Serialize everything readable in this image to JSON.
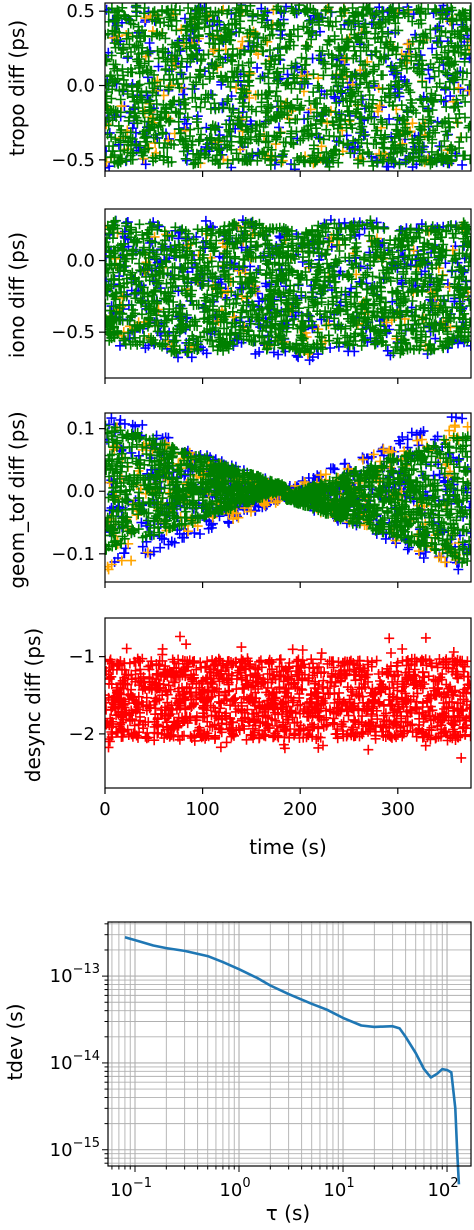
{
  "chart_data": [
    {
      "type": "scatter",
      "marker": "+",
      "xlim": [
        0,
        375
      ],
      "ylim": [
        -0.575,
        0.555
      ],
      "ylabel": "tropo diff (ps)",
      "xticks": [
        0,
        100,
        200,
        300
      ],
      "yticks": [
        -0.5,
        0.0,
        0.5
      ],
      "ytick_labels": [
        "−0.5",
        "0.0",
        "0.5"
      ],
      "series": [
        {
          "color": "#0000ff",
          "band": "uniform",
          "amp": 0.53,
          "count": 360
        },
        {
          "color": "#ffa500",
          "band": "uniform",
          "amp": 0.5,
          "count": 160
        },
        {
          "color": "#008000",
          "band": "uniform",
          "amp": 0.51,
          "count": 1600
        }
      ]
    },
    {
      "type": "scatter",
      "marker": "+",
      "xlim": [
        0,
        375
      ],
      "ylim": [
        -0.82,
        0.36
      ],
      "ylabel": "iono diff (ps)",
      "xticks": [
        0,
        100,
        200,
        300
      ],
      "yticks": [
        -0.5,
        0.0
      ],
      "ytick_labels": [
        "−0.5",
        "0.0"
      ],
      "series": [
        {
          "color": "#0000ff",
          "band": "iono",
          "amp": 0.97,
          "count": 420
        },
        {
          "color": "#ffa500",
          "band": "iono",
          "amp": 0.88,
          "count": 120
        },
        {
          "color": "#008000",
          "band": "iono",
          "amp": 0.9,
          "count": 1700
        }
      ]
    },
    {
      "type": "scatter",
      "marker": "+",
      "xlim": [
        0,
        375
      ],
      "ylim": [
        -0.145,
        0.125
      ],
      "ylabel": "geom_tof diff (ps)",
      "xticks": [
        0,
        100,
        200,
        300
      ],
      "yticks": [
        -0.1,
        0.0,
        0.1
      ],
      "ytick_labels": [
        "−0.1",
        "0.0",
        "0.1"
      ],
      "series": [
        {
          "color": "#0000ff",
          "band": "geom_blue",
          "amp": 1,
          "count": 520
        },
        {
          "color": "#ffa500",
          "band": "geom_orange",
          "amp": 1,
          "count": 260
        },
        {
          "color": "#008000",
          "band": "geom_green",
          "amp": 1,
          "count": 1700
        }
      ]
    },
    {
      "type": "scatter",
      "marker": "+",
      "xlim": [
        0,
        375
      ],
      "ylim": [
        -2.7,
        -0.5
      ],
      "ylabel": "desync diff (ps)",
      "xlabel": "time (s)",
      "xticks": [
        0,
        100,
        200,
        300
      ],
      "xtick_labels": [
        "0",
        "100",
        "200",
        "300"
      ],
      "yticks": [
        -2,
        -1
      ],
      "ytick_labels": [
        "−2",
        "−1"
      ],
      "series": [
        {
          "color": "#ff0000",
          "band": "desync",
          "amp": 1,
          "count": 1500
        }
      ]
    },
    {
      "type": "line",
      "xscale": "log",
      "yscale": "log",
      "grid": true,
      "xlim": [
        0.055,
        170
      ],
      "ylim": [
        6.5e-16,
        4.2e-13
      ],
      "xlabel": "τ (s)",
      "ylabel": "tdev (s)",
      "xticks": [
        0.1,
        1,
        10,
        100
      ],
      "xtick_labels": [
        [
          "10",
          "−1"
        ],
        [
          "10",
          "0"
        ],
        [
          "10",
          "1"
        ],
        [
          "10",
          "2"
        ]
      ],
      "yticks": [
        1e-15,
        1e-14,
        1e-13
      ],
      "ytick_labels": [
        [
          "10",
          "−15"
        ],
        [
          "10",
          "−14"
        ],
        [
          "10",
          "−13"
        ]
      ],
      "line_color": "#1f77b4",
      "series": [
        {
          "x": [
            0.08,
            0.1,
            0.15,
            0.2,
            0.3,
            0.5,
            0.7,
            1,
            1.5,
            2,
            3,
            5,
            7,
            10,
            15,
            20,
            30,
            35,
            40,
            50,
            60,
            70,
            80,
            90,
            100,
            110,
            120,
            125,
            130
          ],
          "y": [
            2.8e-13,
            2.6e-13,
            2.25e-13,
            2.1e-13,
            1.95e-13,
            1.7e-13,
            1.45e-13,
            1.2e-13,
            9.5e-14,
            7.8e-14,
            6.2e-14,
            4.8e-14,
            4.1e-14,
            3.3e-14,
            2.7e-14,
            2.6e-14,
            2.65e-14,
            2.5e-14,
            2e-14,
            1.3e-14,
            8.5e-15,
            6.8e-15,
            7.5e-15,
            8.5e-15,
            8.3e-15,
            7.8e-15,
            3e-15,
            1e-15,
            4e-16
          ]
        }
      ]
    }
  ]
}
